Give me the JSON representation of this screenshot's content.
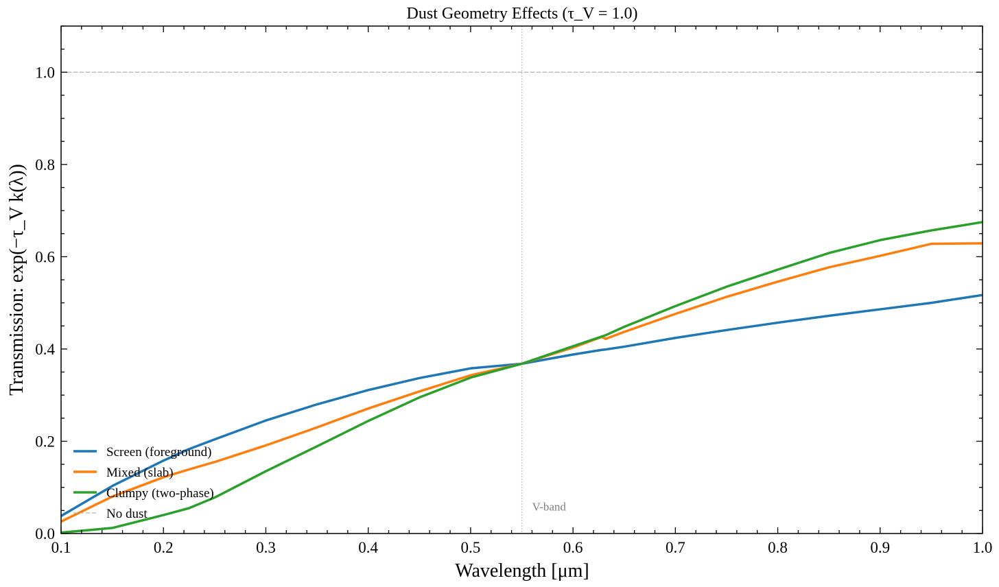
{
  "chart_data": {
    "type": "line",
    "title": "Dust Geometry Effects (τ_V = 1.0)",
    "xlabel": "Wavelength [μm]",
    "ylabel": "Transmission: exp(−τ_V k(λ))",
    "xlim": [
      0.1,
      1.0
    ],
    "ylim": [
      0.0,
      1.1
    ],
    "xticks": [
      "0.1",
      "0.2",
      "0.3",
      "0.4",
      "0.5",
      "0.6",
      "0.7",
      "0.8",
      "0.9",
      "1.0"
    ],
    "yticks": [
      "0.0",
      "0.2",
      "0.4",
      "0.6",
      "0.8",
      "1.0"
    ],
    "grid": false,
    "legend_position": "lower-left",
    "x": [
      0.1,
      0.15,
      0.2,
      0.225,
      0.25,
      0.3,
      0.35,
      0.4,
      0.45,
      0.5,
      0.55,
      0.6,
      0.628,
      0.632,
      0.65,
      0.7,
      0.75,
      0.8,
      0.85,
      0.9,
      0.95,
      1.0
    ],
    "series": [
      {
        "name": "Screen (foreground)",
        "color": "#1f77b4",
        "style": "solid",
        "values": [
          0.038,
          0.103,
          0.158,
          0.183,
          0.204,
          0.245,
          0.28,
          0.311,
          0.337,
          0.358,
          0.368,
          0.388,
          0.398,
          0.399,
          0.405,
          0.424,
          0.441,
          0.457,
          0.472,
          0.486,
          0.5,
          0.517
        ]
      },
      {
        "name": "Mixed (slab)",
        "color": "#ff7f0e",
        "style": "solid",
        "values": [
          0.026,
          0.08,
          0.122,
          0.139,
          0.155,
          0.191,
          0.23,
          0.271,
          0.308,
          0.343,
          0.368,
          0.403,
          0.426,
          0.422,
          0.437,
          0.476,
          0.513,
          0.546,
          0.577,
          0.602,
          0.628,
          0.629
        ]
      },
      {
        "name": "Clumpy (two-phase)",
        "color": "#2ca02c",
        "style": "solid",
        "values": [
          0.002,
          0.012,
          0.04,
          0.055,
          0.078,
          0.135,
          0.189,
          0.244,
          0.295,
          0.338,
          0.368,
          0.406,
          0.427,
          0.43,
          0.448,
          0.493,
          0.535,
          0.572,
          0.608,
          0.636,
          0.657,
          0.675
        ]
      },
      {
        "name": "No dust",
        "color": "#b0b0b0",
        "style": "dashed",
        "values": [
          1.0,
          1.0,
          1.0,
          1.0,
          1.0,
          1.0,
          1.0,
          1.0,
          1.0,
          1.0,
          1.0,
          1.0,
          1.0,
          1.0,
          1.0,
          1.0,
          1.0,
          1.0,
          1.0,
          1.0,
          1.0,
          1.0
        ]
      }
    ],
    "vline": {
      "x": 0.55,
      "label": "V-band",
      "color": "#c0c0c0"
    }
  }
}
